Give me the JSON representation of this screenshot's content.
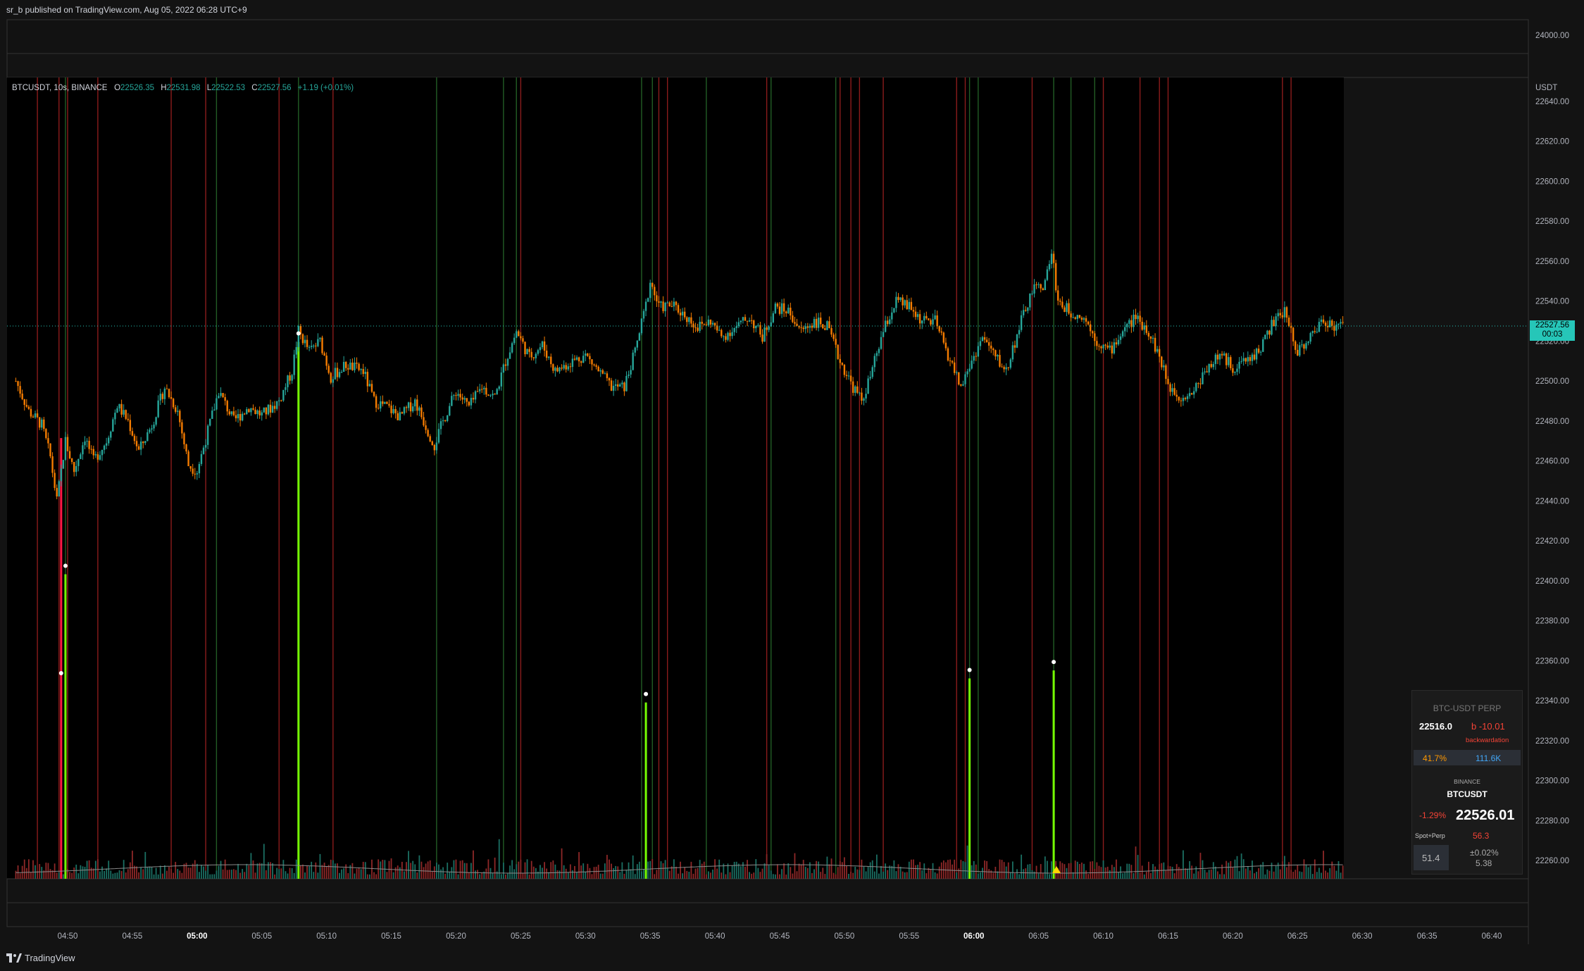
{
  "header": {
    "text": "sr_b published on TradingView.com, Aug 05, 2022 06:28 UTC+9"
  },
  "legend": {
    "symbol": "BTCUSDT, 10s, BINANCE",
    "o_label": "O",
    "o": "22526.35",
    "h_label": "H",
    "h": "22531.98",
    "l_label": "L",
    "l": "22522.53",
    "c_label": "C",
    "c": "22527.56",
    "change": "+1.19 (+0.01%)"
  },
  "price_tag": {
    "price": "22527.56",
    "countdown": "00:03"
  },
  "panel": {
    "title": "BTC-USDT PERP",
    "perp_price": "22516.0",
    "basis": "b -10.01",
    "basis_label": "backwardation",
    "pct": "41.7%",
    "oi": "111.6K",
    "exchange": "BINANCE",
    "spot_symbol": "BTCUSDT",
    "spot_change": "-1.29%",
    "spot_price": "22526.01",
    "spot_perp_label": "Spot+Perp",
    "spot_perp_value": "56.3",
    "box_value": "51.4",
    "delta": "±0.02%",
    "delta_value": "5.38"
  },
  "footer": {
    "brand": "TradingView"
  },
  "colors": {
    "up": "#26a69a",
    "down": "#f57c00",
    "bg": "#000000",
    "frame": "#131313",
    "vline_green": "#2e7d32",
    "vline_red": "#c62828",
    "accent_price": "#26c6b8"
  },
  "chart_data": {
    "type": "candlestick",
    "symbol": "BTCUSDT",
    "interval": "10s",
    "exchange": "BINANCE",
    "yunit": "USDT",
    "ylim": [
      22250,
      24010
    ],
    "y_ticks": [
      24000,
      22640,
      22620,
      22600,
      22580,
      22560,
      22540,
      22520,
      22500,
      22480,
      22460,
      22440,
      22420,
      22400,
      22380,
      22360,
      22340,
      22320,
      22300,
      22280,
      22260
    ],
    "y_tick_labels": [
      "24000.00",
      "22640.00",
      "22620.00",
      "22600.00",
      "22580.00",
      "22560.00",
      "22540.00",
      "22520.00",
      "22500.00",
      "22480.00",
      "22460.00",
      "22440.00",
      "22420.00",
      "22400.00",
      "22380.00",
      "22360.00",
      "22340.00",
      "22320.00",
      "22300.00",
      "22280.00",
      "22260.00"
    ],
    "x_ticks": [
      "04:50",
      "04:55",
      "05:00",
      "05:05",
      "05:10",
      "05:15",
      "05:20",
      "05:25",
      "05:30",
      "05:35",
      "05:40",
      "05:45",
      "05:50",
      "05:55",
      "06:00",
      "06:05",
      "06:10",
      "06:15",
      "06:20",
      "06:25",
      "06:30",
      "06:35",
      "06:40"
    ],
    "x_bold_ticks": [
      "05:00",
      "06:00"
    ],
    "x_range": [
      "04:46:00",
      "06:42:30"
    ],
    "price_path": [
      {
        "t": "04:46:00",
        "p": 22500
      },
      {
        "t": "04:47:00",
        "p": 22485
      },
      {
        "t": "04:48:00",
        "p": 22478
      },
      {
        "t": "04:48:40",
        "p": 22462
      },
      {
        "t": "04:49:10",
        "p": 22440
      },
      {
        "t": "04:49:50",
        "p": 22470
      },
      {
        "t": "04:50:30",
        "p": 22455
      },
      {
        "t": "04:51:20",
        "p": 22472
      },
      {
        "t": "04:52:00",
        "p": 22460
      },
      {
        "t": "04:53:00",
        "p": 22470
      },
      {
        "t": "04:53:50",
        "p": 22488
      },
      {
        "t": "04:54:40",
        "p": 22480
      },
      {
        "t": "04:55:30",
        "p": 22465
      },
      {
        "t": "04:56:30",
        "p": 22478
      },
      {
        "t": "04:57:30",
        "p": 22497
      },
      {
        "t": "04:58:30",
        "p": 22485
      },
      {
        "t": "04:59:20",
        "p": 22458
      },
      {
        "t": "05:00:00",
        "p": 22455
      },
      {
        "t": "05:00:50",
        "p": 22475
      },
      {
        "t": "05:01:40",
        "p": 22495
      },
      {
        "t": "05:02:50",
        "p": 22480
      },
      {
        "t": "05:04:00",
        "p": 22487
      },
      {
        "t": "05:05:00",
        "p": 22483
      },
      {
        "t": "05:06:20",
        "p": 22490
      },
      {
        "t": "05:07:20",
        "p": 22505
      },
      {
        "t": "05:07:50",
        "p": 22525
      },
      {
        "t": "05:08:40",
        "p": 22515
      },
      {
        "t": "05:09:30",
        "p": 22520
      },
      {
        "t": "05:10:20",
        "p": 22502
      },
      {
        "t": "05:11:30",
        "p": 22508
      },
      {
        "t": "05:12:50",
        "p": 22505
      },
      {
        "t": "05:13:40",
        "p": 22490
      },
      {
        "t": "05:14:40",
        "p": 22487
      },
      {
        "t": "05:15:40",
        "p": 22482
      },
      {
        "t": "05:16:50",
        "p": 22490
      },
      {
        "t": "05:17:50",
        "p": 22475
      },
      {
        "t": "05:18:20",
        "p": 22468
      },
      {
        "t": "05:19:00",
        "p": 22480
      },
      {
        "t": "05:20:00",
        "p": 22495
      },
      {
        "t": "05:21:00",
        "p": 22487
      },
      {
        "t": "05:22:00",
        "p": 22497
      },
      {
        "t": "05:23:00",
        "p": 22492
      },
      {
        "t": "05:23:50",
        "p": 22510
      },
      {
        "t": "05:24:40",
        "p": 22525
      },
      {
        "t": "05:25:40",
        "p": 22512
      },
      {
        "t": "05:26:40",
        "p": 22518
      },
      {
        "t": "05:27:40",
        "p": 22505
      },
      {
        "t": "05:29:00",
        "p": 22510
      },
      {
        "t": "05:30:00",
        "p": 22513
      },
      {
        "t": "05:31:00",
        "p": 22505
      },
      {
        "t": "05:32:00",
        "p": 22497
      },
      {
        "t": "05:33:00",
        "p": 22497
      },
      {
        "t": "05:33:50",
        "p": 22515
      },
      {
        "t": "05:34:40",
        "p": 22538
      },
      {
        "t": "05:35:00",
        "p": 22550
      },
      {
        "t": "05:35:40",
        "p": 22537
      },
      {
        "t": "05:36:40",
        "p": 22538
      },
      {
        "t": "05:37:40",
        "p": 22533
      },
      {
        "t": "05:38:40",
        "p": 22527
      },
      {
        "t": "05:39:40",
        "p": 22530
      },
      {
        "t": "05:40:30",
        "p": 22522
      },
      {
        "t": "05:41:40",
        "p": 22527
      },
      {
        "t": "05:42:40",
        "p": 22532
      },
      {
        "t": "05:43:40",
        "p": 22522
      },
      {
        "t": "05:44:40",
        "p": 22537
      },
      {
        "t": "05:45:40",
        "p": 22535
      },
      {
        "t": "05:46:40",
        "p": 22525
      },
      {
        "t": "05:47:40",
        "p": 22530
      },
      {
        "t": "05:48:40",
        "p": 22527
      },
      {
        "t": "05:49:40",
        "p": 22510
      },
      {
        "t": "05:50:40",
        "p": 22497
      },
      {
        "t": "05:51:20",
        "p": 22490
      },
      {
        "t": "05:52:00",
        "p": 22502
      },
      {
        "t": "05:53:00",
        "p": 22525
      },
      {
        "t": "05:54:00",
        "p": 22540
      },
      {
        "t": "05:55:00",
        "p": 22537
      },
      {
        "t": "05:56:00",
        "p": 22530
      },
      {
        "t": "05:57:00",
        "p": 22530
      },
      {
        "t": "05:58:00",
        "p": 22513
      },
      {
        "t": "05:59:00",
        "p": 22497
      },
      {
        "t": "05:59:50",
        "p": 22510
      },
      {
        "t": "06:00:40",
        "p": 22522
      },
      {
        "t": "06:01:40",
        "p": 22512
      },
      {
        "t": "06:02:30",
        "p": 22505
      },
      {
        "t": "06:03:30",
        "p": 22527
      },
      {
        "t": "06:04:30",
        "p": 22545
      },
      {
        "t": "06:05:30",
        "p": 22549
      },
      {
        "t": "06:06:00",
        "p": 22565
      },
      {
        "t": "06:06:30",
        "p": 22540
      },
      {
        "t": "06:07:20",
        "p": 22535
      },
      {
        "t": "06:08:30",
        "p": 22532
      },
      {
        "t": "06:09:30",
        "p": 22520
      },
      {
        "t": "06:10:30",
        "p": 22515
      },
      {
        "t": "06:11:30",
        "p": 22525
      },
      {
        "t": "06:12:30",
        "p": 22532
      },
      {
        "t": "06:13:30",
        "p": 22525
      },
      {
        "t": "06:14:20",
        "p": 22512
      },
      {
        "t": "06:15:00",
        "p": 22498
      },
      {
        "t": "06:16:00",
        "p": 22492
      },
      {
        "t": "06:17:00",
        "p": 22495
      },
      {
        "t": "06:18:00",
        "p": 22507
      },
      {
        "t": "06:19:00",
        "p": 22513
      },
      {
        "t": "06:20:00",
        "p": 22507
      },
      {
        "t": "06:21:00",
        "p": 22510
      },
      {
        "t": "06:22:00",
        "p": 22515
      },
      {
        "t": "06:23:00",
        "p": 22528
      },
      {
        "t": "06:24:00",
        "p": 22535
      },
      {
        "t": "06:25:00",
        "p": 22515
      },
      {
        "t": "06:26:00",
        "p": 22522
      },
      {
        "t": "06:27:00",
        "p": 22531
      },
      {
        "t": "06:28:00",
        "p": 22527
      },
      {
        "t": "06:28:30",
        "p": 22527.56
      }
    ],
    "vertical_markers": {
      "green": [
        "04:49:50",
        "05:01:30",
        "05:07:50",
        "05:18:30",
        "05:23:40",
        "05:24:40",
        "05:34:20",
        "05:35:10",
        "05:39:20",
        "05:44:20",
        "05:49:20",
        "05:59:40",
        "06:00:20",
        "06:06:10",
        "06:07:30",
        "06:09:20"
      ],
      "red": [
        "04:47:40",
        "04:49:20",
        "04:50:00",
        "04:52:20",
        "04:58:00",
        "05:00:40",
        "05:06:20",
        "05:10:30",
        "05:25:00",
        "05:35:40",
        "05:36:20",
        "05:44:00",
        "05:49:40",
        "05:50:30",
        "05:51:10",
        "05:53:00",
        "05:58:40",
        "05:59:20",
        "06:04:30",
        "06:10:00",
        "06:12:50",
        "06:14:20",
        "06:15:00",
        "06:23:50",
        "06:24:30"
      ]
    },
    "volume_spikes": [
      {
        "t": "04:49:30",
        "color": "red",
        "level": 0.55
      },
      {
        "t": "04:49:50",
        "color": "green",
        "level": 0.38
      },
      {
        "t": "05:07:50",
        "color": "green",
        "level": 0.67
      },
      {
        "t": "05:34:40",
        "color": "green",
        "level": 0.22
      },
      {
        "t": "05:59:40",
        "color": "green",
        "level": 0.25
      },
      {
        "t": "06:06:10",
        "color": "green",
        "level": 0.26
      }
    ],
    "grid": false,
    "current_price": 22527.56
  }
}
